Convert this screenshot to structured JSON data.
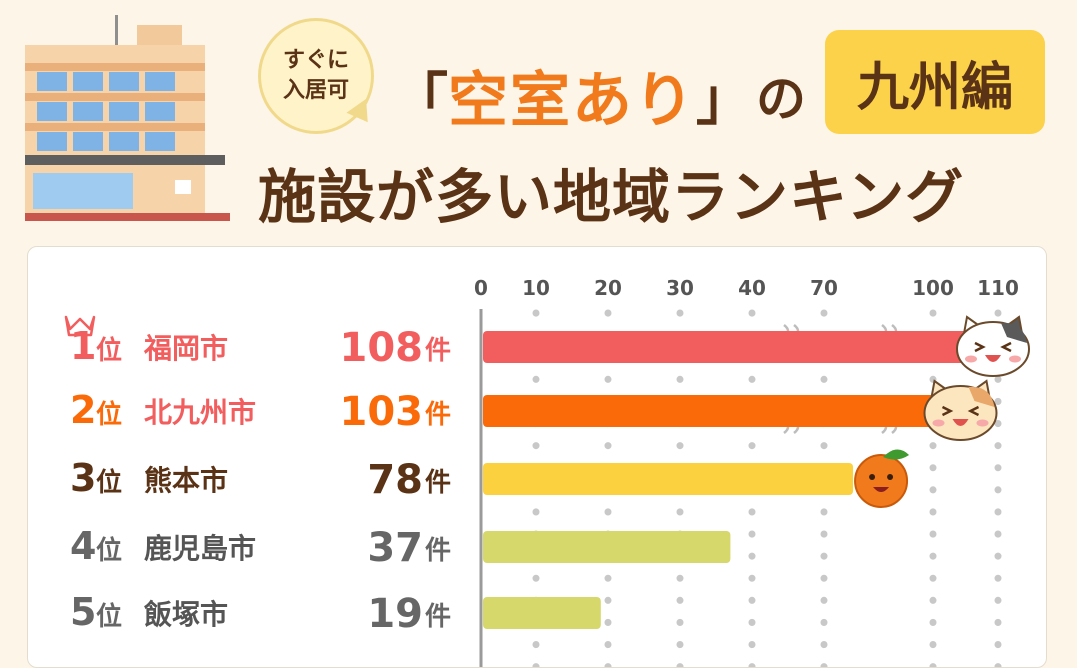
{
  "header": {
    "bubble_line1": "すぐに",
    "bubble_line2": "入居可",
    "title_open": "「",
    "title_highlight": "空室あり",
    "title_close": "」",
    "title_particle": "の",
    "region": "九州編",
    "title_line2": "施設が多い地域ランキング"
  },
  "chart_data": {
    "type": "bar",
    "orientation": "horizontal",
    "axis_ticks": [
      "0",
      "10",
      "20",
      "30",
      "40",
      "70",
      "100",
      "110"
    ],
    "axis_break": "between 40 and 70, and between 70 and 100",
    "unit_label": "件",
    "rank_suffix": "位",
    "rows": [
      {
        "rank": "1",
        "city": "福岡市",
        "value": 108,
        "color": "#f25e5e",
        "rank_color": "#f25e5e",
        "city_color": "#f25e5e",
        "value_color": "#f25e5e",
        "crown": true,
        "mascot": "calico-cat-icon"
      },
      {
        "rank": "2",
        "city": "北九州市",
        "value": 103,
        "color": "#fb6a09",
        "rank_color": "#fb6a09",
        "city_color": "#f25e5e",
        "value_color": "#fb6a09",
        "crown": false,
        "mascot": "tabby-cat-icon"
      },
      {
        "rank": "3",
        "city": "熊本市",
        "value": 78,
        "color": "#fcd13f",
        "rank_color": "#5a3215",
        "city_color": "#5a3215",
        "value_color": "#5a3215",
        "crown": false,
        "mascot": "mandarin-orange-icon"
      },
      {
        "rank": "4",
        "city": "鹿児島市",
        "value": 37,
        "color": "#d6d86b",
        "rank_color": "#666666",
        "city_color": "#555555",
        "value_color": "#666666",
        "crown": false,
        "mascot": ""
      },
      {
        "rank": "5",
        "city": "飯塚市",
        "value": 19,
        "color": "#d6d86b",
        "rank_color": "#666666",
        "city_color": "#555555",
        "value_color": "#666666",
        "crown": false,
        "mascot": ""
      }
    ]
  }
}
